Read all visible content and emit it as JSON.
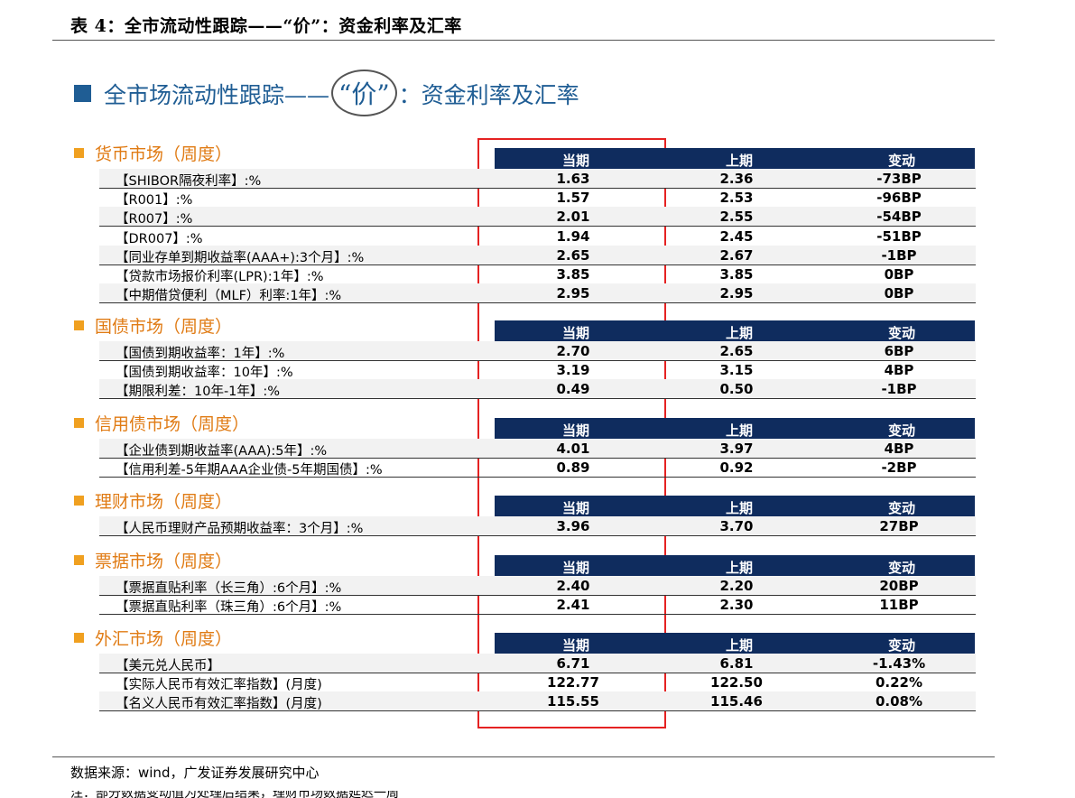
{
  "caption": "表 4：全市流动性跟踪——“价”：资金利率及汇率",
  "slide_title": {
    "pre": "全市场流动性跟踪——",
    "circled": "“价”",
    "post": "：资金利率及汇率"
  },
  "columns": [
    "当期",
    "上期",
    "变动"
  ],
  "colors": {
    "title_blue": "#1f5d94",
    "header_navy": "#0f2c5e",
    "section_orange": "#e07b14",
    "highlight_red": "#e52222"
  },
  "sections": [
    {
      "title": "货币市场（周度）",
      "rows": [
        {
          "label": "【SHIBOR隔夜利率】:%",
          "cur": "1.63",
          "prev": "2.36",
          "chg": "-73BP"
        },
        {
          "label": "【R001】:%",
          "cur": "1.57",
          "prev": "2.53",
          "chg": "-96BP"
        },
        {
          "label": "【R007】:%",
          "cur": "2.01",
          "prev": "2.55",
          "chg": "-54BP"
        },
        {
          "label": "【DR007】:%",
          "cur": "1.94",
          "prev": "2.45",
          "chg": "-51BP"
        },
        {
          "label": "【同业存单到期收益率(AAA+):3个月】:%",
          "cur": "2.65",
          "prev": "2.67",
          "chg": "-1BP"
        },
        {
          "label": "【贷款市场报价利率(LPR):1年】:%",
          "cur": "3.85",
          "prev": "3.85",
          "chg": "0BP"
        },
        {
          "label": "【中期借贷便利（MLF）利率:1年】:%",
          "cur": "2.95",
          "prev": "2.95",
          "chg": "0BP"
        }
      ]
    },
    {
      "title": "国债市场（周度）",
      "rows": [
        {
          "label": "【国债到期收益率：1年】:%",
          "cur": "2.70",
          "prev": "2.65",
          "chg": "6BP"
        },
        {
          "label": "【国债到期收益率：10年】:%",
          "cur": "3.19",
          "prev": "3.15",
          "chg": "4BP"
        },
        {
          "label": "【期限利差：10年-1年】:%",
          "cur": "0.49",
          "prev": "0.50",
          "chg": "-1BP"
        }
      ]
    },
    {
      "title": "信用债市场（周度）",
      "rows": [
        {
          "label": "【企业债到期收益率(AAA):5年】:%",
          "cur": "4.01",
          "prev": "3.97",
          "chg": "4BP"
        },
        {
          "label": "【信用利差-5年期AAA企业债-5年期国债】:%",
          "cur": "0.89",
          "prev": "0.92",
          "chg": "-2BP"
        }
      ]
    },
    {
      "title": "理财市场（周度）",
      "rows": [
        {
          "label": "【人民币理财产品预期收益率：3个月】:%",
          "cur": "3.96",
          "prev": "3.70",
          "chg": "27BP"
        }
      ]
    },
    {
      "title": "票据市场（周度）",
      "rows": [
        {
          "label": "【票据直贴利率（长三角）:6个月】:%",
          "cur": "2.40",
          "prev": "2.20",
          "chg": "20BP"
        },
        {
          "label": "【票据直贴利率（珠三角）:6个月】:%",
          "cur": "2.41",
          "prev": "2.30",
          "chg": "11BP"
        }
      ]
    },
    {
      "title": "外汇市场（周度）",
      "rows": [
        {
          "label": "【美元兑人民币】",
          "cur": "6.71",
          "prev": "6.81",
          "chg": "-1.43%"
        },
        {
          "label": "【实际人民币有效汇率指数】(月度)",
          "cur": "122.77",
          "prev": "122.50",
          "chg": "0.22%"
        },
        {
          "label": "【名义人民币有效汇率指数】(月度)",
          "cur": "115.55",
          "prev": "115.46",
          "chg": "0.08%"
        }
      ]
    }
  ],
  "source": "数据来源：wind，广发证券发展研究中心",
  "note": "注：部分数据变动值为处理后结果，理财市场数据延迟一周"
}
